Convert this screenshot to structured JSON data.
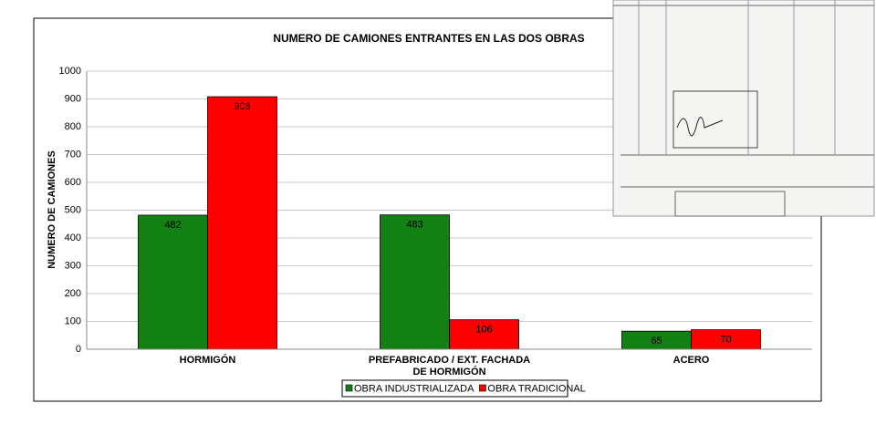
{
  "chart_data": {
    "type": "bar",
    "title": "NUMERO DE CAMIONES ENTRANTES EN LAS DOS OBRAS",
    "y_label": "NUMERO DE CAMIONES",
    "categories": [
      "HORMIGÓN",
      "PREFABRICADO / EXT. FACHADA DE HORMIGÓN",
      "ACERO"
    ],
    "series": [
      {
        "name": "OBRA INDUSTRIALIZADA",
        "color": "#138013",
        "values": [
          482,
          483,
          65
        ]
      },
      {
        "name": "OBRA TRADICIONAL",
        "color": "#ff0000",
        "values": [
          908,
          106,
          70
        ]
      }
    ],
    "ylim": [
      0,
      1000
    ],
    "yticks": [
      0,
      100,
      200,
      300,
      400,
      500,
      600,
      700,
      800,
      900,
      1000
    ],
    "grid": true,
    "legend": "bottom"
  }
}
